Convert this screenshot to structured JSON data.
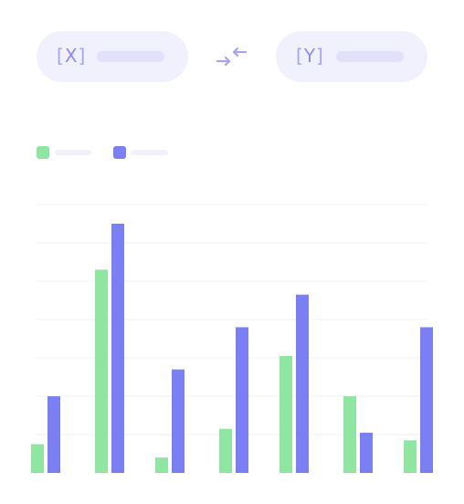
{
  "controls": {
    "x_axis": {
      "letter": "X",
      "field_label": ""
    },
    "y_axis": {
      "letter": "Y",
      "field_label": ""
    },
    "swap_icon": "swap-arrows-icon"
  },
  "colors": {
    "series_a": "#8ee6a0",
    "series_b": "#7b7ff5",
    "grid": "#f3f3f6",
    "pill_bg": "#f1f0fd",
    "accent": "#8f8cf0"
  },
  "chart_data": {
    "type": "bar",
    "title": "",
    "xlabel": "",
    "ylabel": "",
    "categories": [
      "",
      "",
      "",
      "",
      "",
      "",
      ""
    ],
    "ylim": [
      0,
      7
    ],
    "grid": true,
    "legend": "top-left",
    "series": [
      {
        "name": "",
        "color": "#8ee6a0",
        "values": [
          0.75,
          5.3,
          0.4,
          1.15,
          3.05,
          2.0,
          0.85
        ]
      },
      {
        "name": "",
        "color": "#7b7ff5",
        "values": [
          2.0,
          6.5,
          2.7,
          3.8,
          4.65,
          1.05,
          3.8
        ]
      }
    ]
  }
}
